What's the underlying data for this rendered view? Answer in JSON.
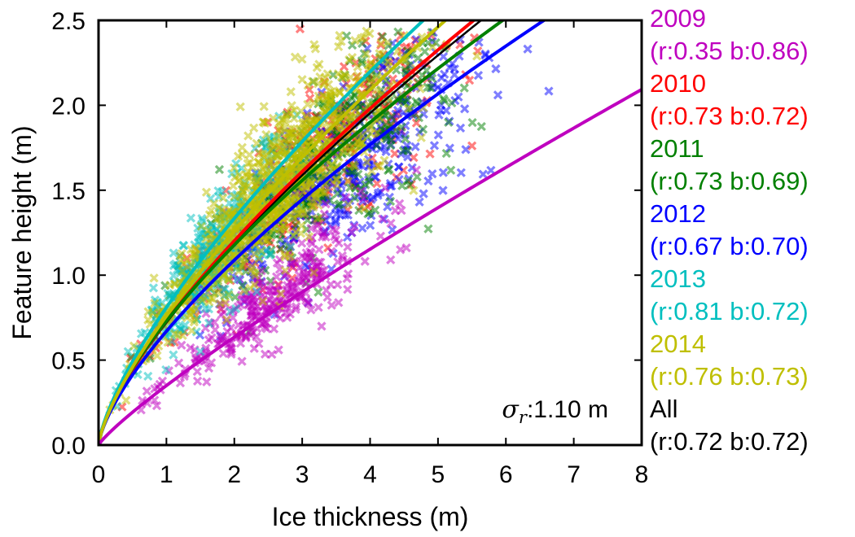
{
  "chart_data": {
    "type": "scatter",
    "title": "",
    "xlabel": "Ice thickness (m)",
    "ylabel": "Feature height (m)",
    "xlim": [
      0,
      8
    ],
    "ylim": [
      0,
      2.5
    ],
    "x_ticks": [
      "0",
      "1",
      "2",
      "3",
      "4",
      "5",
      "6",
      "7",
      "8"
    ],
    "y_ticks": [
      "0.0",
      "0.5",
      "1.0",
      "1.5",
      "2.0",
      "2.5"
    ],
    "grid": false,
    "legend_position": "outside-right",
    "annotation": {
      "symbol": "σ",
      "subscript": "r",
      "text": ":1.10 m"
    },
    "model": "height = r * thickness^b",
    "series": [
      {
        "name": "2009",
        "fit": "(r:0.35 b:0.86)",
        "r": 0.35,
        "b": 0.86,
        "color": "#bf00bf",
        "cloud": {
          "x_center": 2.5,
          "height_scale": 1.08,
          "x_spread": 1.0,
          "count": 320
        }
      },
      {
        "name": "2010",
        "fit": "(r:0.73 b:0.72)",
        "r": 0.73,
        "b": 0.72,
        "color": "#ff0000",
        "cloud": {
          "x_center": 3.2,
          "height_scale": 1.0,
          "x_spread": 1.5,
          "count": 320
        }
      },
      {
        "name": "2011",
        "fit": "(r:0.73 b:0.69)",
        "r": 0.73,
        "b": 0.69,
        "color": "#008000",
        "cloud": {
          "x_center": 3.4,
          "height_scale": 1.0,
          "x_spread": 1.4,
          "count": 380
        }
      },
      {
        "name": "2012",
        "fit": "(r:0.67 b:0.70)",
        "r": 0.67,
        "b": 0.7,
        "color": "#0000ff",
        "cloud": {
          "x_center": 3.7,
          "height_scale": 0.98,
          "x_spread": 1.4,
          "count": 380
        }
      },
      {
        "name": "2013",
        "fit": "(r:0.81 b:0.72)",
        "r": 0.81,
        "b": 0.72,
        "color": "#00bfbf",
        "cloud": {
          "x_center": 1.7,
          "height_scale": 0.95,
          "x_spread": 0.8,
          "count": 380
        }
      },
      {
        "name": "2014",
        "fit": "(r:0.76 b:0.73)",
        "r": 0.76,
        "b": 0.73,
        "color": "#bfbf00",
        "cloud": {
          "x_center": 2.6,
          "height_scale": 1.0,
          "x_spread": 1.2,
          "count": 900
        }
      },
      {
        "name": "All",
        "fit": "(r:0.72 b:0.72)",
        "r": 0.72,
        "b": 0.72,
        "color": "#000000",
        "cloud": null
      }
    ]
  }
}
